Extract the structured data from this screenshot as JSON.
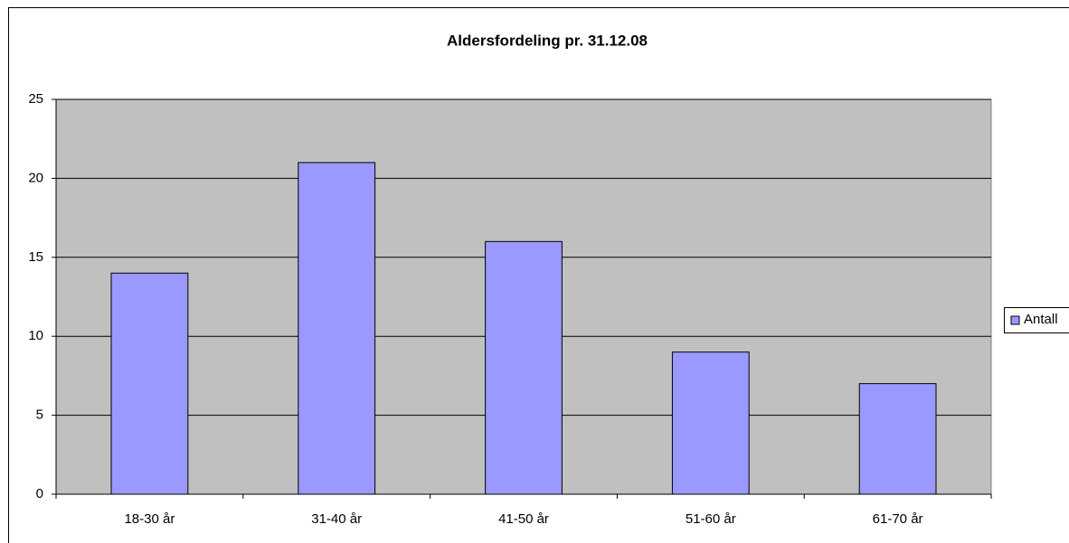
{
  "chart_data": {
    "type": "bar",
    "title": "Aldersfordeling pr. 31.12.08",
    "categories": [
      "18-30 år",
      "31-40 år",
      "41-50 år",
      "51-60 år",
      "61-70 år"
    ],
    "series": [
      {
        "name": "Antall",
        "color": "#9999ff",
        "values": [
          14,
          21,
          16,
          9,
          7
        ]
      }
    ],
    "ylim": [
      0,
      25
    ],
    "yticks": [
      0,
      5,
      10,
      15,
      20,
      25
    ],
    "grid": true,
    "legend": "right"
  }
}
